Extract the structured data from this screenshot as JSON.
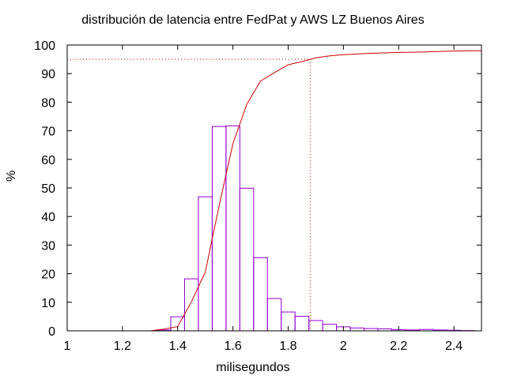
{
  "chart_data": {
    "type": "bar",
    "title": "distribución de latencia entre FedPat y AWS LZ Buenos Aires",
    "xlabel": "milisegundos",
    "ylabel": "%",
    "xlim": [
      1,
      2.5
    ],
    "ylim": [
      0,
      100
    ],
    "xticks": [
      "1",
      "1.2",
      "1.4",
      "1.6",
      "1.8",
      "2",
      "2.2",
      "2.4"
    ],
    "yticks": [
      "0",
      "10",
      "20",
      "30",
      "40",
      "50",
      "60",
      "70",
      "80",
      "90",
      "100"
    ],
    "bin_width": 0.05,
    "histogram": {
      "x": [
        1.35,
        1.4,
        1.45,
        1.5,
        1.55,
        1.6,
        1.65,
        1.7,
        1.75,
        1.8,
        1.85,
        1.9,
        1.95,
        2.0,
        2.05,
        2.1,
        2.15,
        2.2,
        2.25,
        2.3,
        2.35,
        2.4,
        2.45
      ],
      "values": [
        0.3,
        4.9,
        18.2,
        46.9,
        71.5,
        71.7,
        49.9,
        25.6,
        11.3,
        6.6,
        5.1,
        3.6,
        2.3,
        1.4,
        1.0,
        0.8,
        0.7,
        0.4,
        0.3,
        0.5,
        0.3,
        0.2,
        0.1
      ],
      "color": "#9400d3"
    },
    "cumulative": {
      "x": [
        1.3,
        1.35,
        1.4,
        1.45,
        1.5,
        1.55,
        1.6,
        1.65,
        1.7,
        1.75,
        1.8,
        1.85,
        1.9,
        1.95,
        2.0,
        2.1,
        2.2,
        2.3,
        2.4,
        2.5
      ],
      "values": [
        0.0,
        0.6,
        1.5,
        10.2,
        20.6,
        43.7,
        65.5,
        79.2,
        87.4,
        90.3,
        93.1,
        94.2,
        95.5,
        96.2,
        96.6,
        97.1,
        97.4,
        97.6,
        97.9,
        98.0
      ],
      "color": "#cc0000"
    },
    "percentile_95": {
      "x": 1.88,
      "y": 95
    },
    "grid": false,
    "legend": "none"
  }
}
